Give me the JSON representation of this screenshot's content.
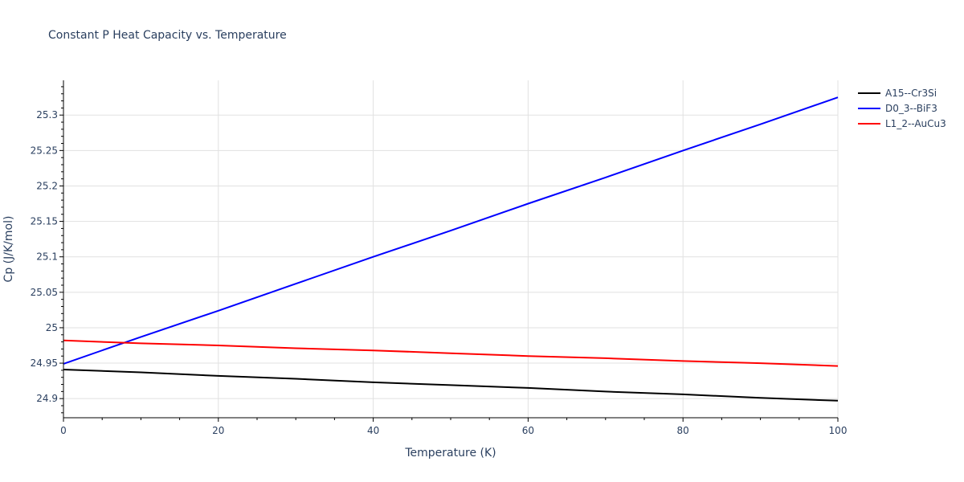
{
  "chart_data": {
    "type": "line",
    "title": "Constant P Heat Capacity vs. Temperature",
    "xlabel": "Temperature (K)",
    "ylabel": "Cp (J/K/mol)",
    "xlim": [
      0,
      100
    ],
    "ylim": [
      24.873,
      25.349
    ],
    "x_ticks": [
      0,
      20,
      40,
      60,
      80,
      100
    ],
    "x_tick_labels": [
      "0",
      "20",
      "40",
      "60",
      "80",
      "100"
    ],
    "y_ticks": [
      24.9,
      24.95,
      25,
      25.05,
      25.1,
      25.15,
      25.2,
      25.25,
      25.3
    ],
    "y_tick_labels": [
      "24.9",
      "24.95",
      "25",
      "25.05",
      "25.1",
      "25.15",
      "25.2",
      "25.25",
      "25.3"
    ],
    "grid": true,
    "legend_position": "right-top",
    "x": [
      0,
      10,
      20,
      30,
      40,
      50,
      60,
      70,
      80,
      90,
      100
    ],
    "series": [
      {
        "name": "A15--Cr3Si",
        "color": "#000000",
        "values": [
          24.941,
          24.937,
          24.932,
          24.928,
          24.923,
          24.919,
          24.915,
          24.91,
          24.906,
          24.901,
          24.897
        ]
      },
      {
        "name": "D0_3--BiF3",
        "color": "#0000ff",
        "values": [
          24.949,
          24.987,
          25.024,
          25.062,
          25.1,
          25.137,
          25.175,
          25.212,
          25.25,
          25.287,
          25.325
        ]
      },
      {
        "name": "L1_2--AuCu3",
        "color": "#ff0000",
        "values": [
          24.982,
          24.978,
          24.975,
          24.971,
          24.968,
          24.964,
          24.96,
          24.957,
          24.953,
          24.95,
          24.946
        ]
      }
    ]
  }
}
